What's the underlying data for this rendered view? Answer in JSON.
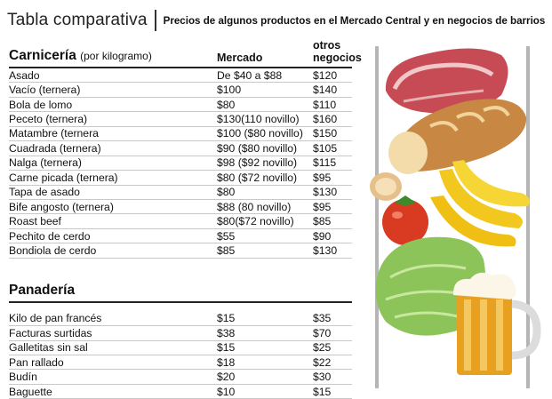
{
  "header": {
    "title": "Tabla comparativa",
    "subtitle": "Precios de algunos productos en el Mercado Central y en negocios de barrios"
  },
  "carniceria": {
    "title": "Carnicería",
    "unit": "(por kilogramo)",
    "col_mercado": "Mercado",
    "col_otros_1": "otros",
    "col_otros_2": "negocios",
    "rows": [
      {
        "name": "Asado",
        "mercado": "De $40 a $88",
        "otros": "$120"
      },
      {
        "name": "Vacío (ternera)",
        "mercado": "$100",
        "otros": "$140"
      },
      {
        "name": "Bola de lomo",
        "mercado": "$80",
        "otros": "$110"
      },
      {
        "name": "Peceto (ternera)",
        "mercado": "$130(110 novillo)",
        "otros": "$160"
      },
      {
        "name": "Matambre (ternera",
        "mercado": "$100 ($80 novillo)",
        "otros": "$150"
      },
      {
        "name": "Cuadrada (ternera)",
        "mercado": "$90 ($80 novillo)",
        "otros": "$105"
      },
      {
        "name": "Nalga (ternera)",
        "mercado": "$98 ($92 novillo)",
        "otros": "$115"
      },
      {
        "name": "Carne picada (ternera)",
        "mercado": "$80 ($72 novillo)",
        "otros": "$95"
      },
      {
        "name": "Tapa de asado",
        "mercado": "$80",
        "otros": "$130"
      },
      {
        "name": "Bife angosto (ternera)",
        "mercado": "$88 (80 novillo)",
        "otros": "$95"
      },
      {
        "name": "Roast beef",
        "mercado": "$80($72 novillo)",
        "otros": "$85"
      },
      {
        "name": "Pechito de cerdo",
        "mercado": "$55",
        "otros": "$90"
      },
      {
        "name": "Bondiola de cerdo",
        "mercado": "$85",
        "otros": "$130"
      }
    ]
  },
  "panaderia": {
    "title": "Panadería",
    "rows": [
      {
        "name": "Kilo de pan francés",
        "mercado": "$15",
        "otros": "$35"
      },
      {
        "name": "Facturas surtidas",
        "mercado": "$38",
        "otros": "$70"
      },
      {
        "name": "Galletitas sin sal",
        "mercado": "$15",
        "otros": "$25"
      },
      {
        "name": "Pan rallado",
        "mercado": "$18",
        "otros": "$22"
      },
      {
        "name": "Budín",
        "mercado": "$20",
        "otros": "$30"
      },
      {
        "name": "Baguette",
        "mercado": "$10",
        "otros": "$15"
      }
    ]
  },
  "colors": {
    "meat": "#c8505a",
    "bread": "#c98a4a",
    "banana": "#f2c81e",
    "tomato": "#d83a22",
    "lettuce": "#8cc45a",
    "beer": "#e8a020",
    "pole": "#b0b0b0"
  }
}
